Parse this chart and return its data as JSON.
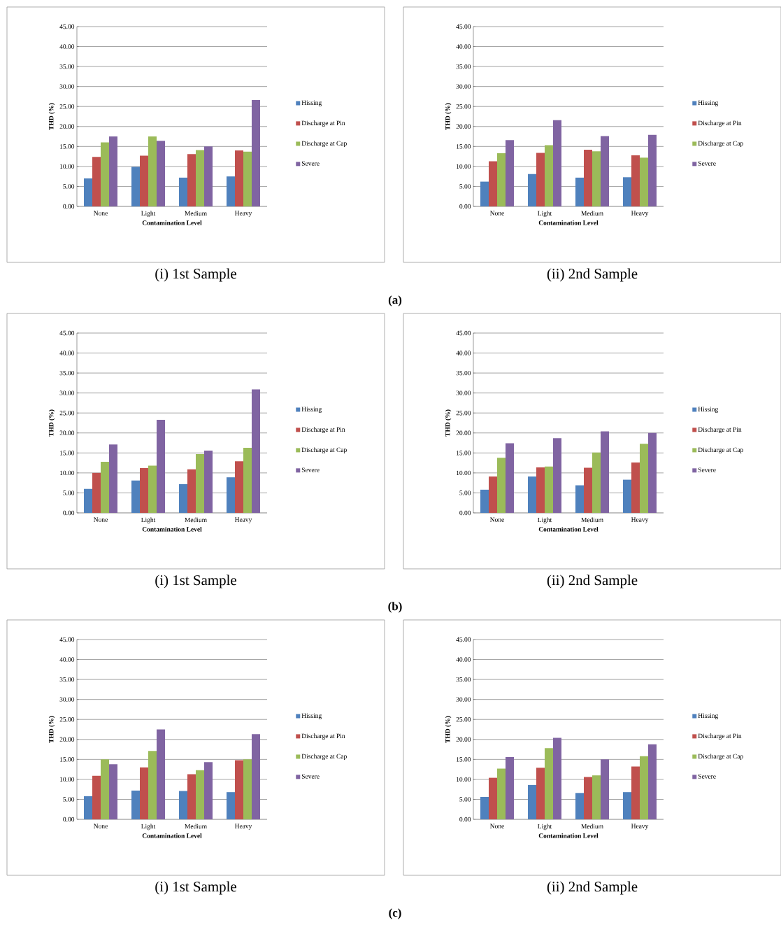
{
  "chart_data": [
    {
      "type": "bar",
      "title": "(i) 1st Sample",
      "xlabel": "Contamination Level",
      "ylabel": "THD (%)",
      "annotations": [
        "(a)"
      ],
      "categories": [
        "None",
        "Light",
        "Medium",
        "Heavy"
      ],
      "series": [
        {
          "name": "Hissing",
          "color": "#4f81bd",
          "values": [
            7.0,
            9.9,
            7.2,
            7.5
          ]
        },
        {
          "name": "Discharge at Pin",
          "color": "#c0504d",
          "values": [
            12.4,
            12.7,
            13.1,
            14.0
          ]
        },
        {
          "name": "Discharge at Cap",
          "color": "#9bbb59",
          "values": [
            16.0,
            17.5,
            14.1,
            13.7
          ]
        },
        {
          "name": "Severe",
          "color": "#8064a2",
          "values": [
            17.5,
            16.4,
            15.0,
            26.6
          ]
        }
      ],
      "ylim": [
        0,
        45
      ],
      "yticks": [
        {
          "value": 0,
          "label": "0.00"
        },
        {
          "value": 5,
          "label": "5.00"
        },
        {
          "value": 10,
          "label": "10.00"
        },
        {
          "value": 15,
          "label": "15.00"
        },
        {
          "value": 20,
          "label": "20.00"
        },
        {
          "value": 25,
          "label": "25.00"
        },
        {
          "value": 30,
          "label": "30.00"
        },
        {
          "value": 35,
          "label": "35.00"
        },
        {
          "value": 40,
          "label": "40.00"
        },
        {
          "value": 45,
          "label": "45.00"
        }
      ],
      "grid": "y",
      "legend": "right"
    },
    {
      "type": "bar",
      "title": "(ii) 2nd Sample",
      "xlabel": "Contamination Level",
      "ylabel": "THD (%)",
      "categories": [
        "None",
        "Light",
        "Medium",
        "Heavy"
      ],
      "series": [
        {
          "name": "Hissing",
          "color": "#4f81bd",
          "values": [
            6.2,
            8.1,
            7.2,
            7.3
          ]
        },
        {
          "name": "Discharge at Pin",
          "color": "#c0504d",
          "values": [
            11.3,
            13.4,
            14.2,
            12.8
          ]
        },
        {
          "name": "Discharge at Cap",
          "color": "#9bbb59",
          "values": [
            13.3,
            15.3,
            13.8,
            12.2
          ]
        },
        {
          "name": "Severe",
          "color": "#8064a2",
          "values": [
            16.6,
            21.6,
            17.6,
            17.9
          ]
        }
      ],
      "ylim": [
        0,
        45
      ],
      "yticks": [
        {
          "value": 0,
          "label": "0.00"
        },
        {
          "value": 5,
          "label": "5.00"
        },
        {
          "value": 10,
          "label": "10.00"
        },
        {
          "value": 15,
          "label": "15.00"
        },
        {
          "value": 20,
          "label": "20.00"
        },
        {
          "value": 25,
          "label": "25.00"
        },
        {
          "value": 30,
          "label": "30.00"
        },
        {
          "value": 35,
          "label": "35.00"
        },
        {
          "value": 40,
          "label": "40.00"
        },
        {
          "value": 45,
          "label": "45.00"
        }
      ],
      "grid": "y",
      "legend": "right"
    },
    {
      "type": "bar",
      "title": "(i) 1st Sample",
      "xlabel": "Contamination Level",
      "ylabel": "THD (%)",
      "annotations": [
        "(b)"
      ],
      "categories": [
        "None",
        "Light",
        "Medium",
        "Heavy"
      ],
      "series": [
        {
          "name": "Hissing",
          "color": "#4f81bd",
          "values": [
            6.0,
            8.1,
            7.2,
            8.9
          ]
        },
        {
          "name": "Discharge at Pin",
          "color": "#c0504d",
          "values": [
            10.0,
            11.2,
            10.9,
            12.9
          ]
        },
        {
          "name": "Discharge at Cap",
          "color": "#9bbb59",
          "values": [
            12.8,
            11.8,
            14.7,
            16.3
          ]
        },
        {
          "name": "Severe",
          "color": "#8064a2",
          "values": [
            17.1,
            23.3,
            15.6,
            30.9
          ]
        }
      ],
      "ylim": [
        0,
        45
      ],
      "yticks": [
        {
          "value": 0,
          "label": "0.00"
        },
        {
          "value": 5,
          "label": "5.00"
        },
        {
          "value": 10,
          "label": "10.00"
        },
        {
          "value": 15,
          "label": "15.00"
        },
        {
          "value": 20,
          "label": "20.00"
        },
        {
          "value": 25,
          "label": "25.00"
        },
        {
          "value": 30,
          "label": "30.00"
        },
        {
          "value": 35,
          "label": "35.00"
        },
        {
          "value": 40,
          "label": "40.00"
        },
        {
          "value": 45,
          "label": "45.00"
        }
      ],
      "grid": "y",
      "legend": "right"
    },
    {
      "type": "bar",
      "title": "(ii) 2nd Sample",
      "xlabel": "Contamination Level",
      "ylabel": "THD (%)",
      "categories": [
        "None",
        "Light",
        "Medium",
        "Heavy"
      ],
      "series": [
        {
          "name": "Hissing",
          "color": "#4f81bd",
          "values": [
            5.8,
            9.1,
            6.9,
            8.3
          ]
        },
        {
          "name": "Discharge at Pin",
          "color": "#c0504d",
          "values": [
            9.1,
            11.4,
            11.3,
            12.6
          ]
        },
        {
          "name": "Discharge at Cap",
          "color": "#9bbb59",
          "values": [
            13.8,
            11.6,
            15.1,
            17.3
          ]
        },
        {
          "name": "Severe",
          "color": "#8064a2",
          "values": [
            17.4,
            18.7,
            20.4,
            20.0
          ]
        }
      ],
      "ylim": [
        0,
        45
      ],
      "yticks": [
        {
          "value": 0,
          "label": "0.00"
        },
        {
          "value": 5,
          "label": "5.00"
        },
        {
          "value": 10,
          "label": "10.00"
        },
        {
          "value": 15,
          "label": "15.00"
        },
        {
          "value": 20,
          "label": "20.00"
        },
        {
          "value": 25,
          "label": "25.00"
        },
        {
          "value": 30,
          "label": "30.00"
        },
        {
          "value": 35,
          "label": "35.00"
        },
        {
          "value": 40,
          "label": "40.00"
        },
        {
          "value": 45,
          "label": "45.00"
        }
      ],
      "grid": "y",
      "legend": "right"
    },
    {
      "type": "bar",
      "title": "(i) 1st Sample",
      "xlabel": "Contamination Level",
      "ylabel": "THD (%)",
      "annotations": [
        "(c)"
      ],
      "categories": [
        "None",
        "Light",
        "Medium",
        "Heavy"
      ],
      "series": [
        {
          "name": "Hissing",
          "color": "#4f81bd",
          "values": [
            5.8,
            7.2,
            7.1,
            6.8
          ]
        },
        {
          "name": "Discharge at Pin",
          "color": "#c0504d",
          "values": [
            10.9,
            13.0,
            11.3,
            14.8
          ]
        },
        {
          "name": "Discharge at Cap",
          "color": "#9bbb59",
          "values": [
            15.0,
            17.1,
            12.3,
            15.0
          ]
        },
        {
          "name": "Severe",
          "color": "#8064a2",
          "values": [
            13.8,
            22.5,
            14.3,
            21.3
          ]
        }
      ],
      "ylim": [
        0,
        45
      ],
      "yticks": [
        {
          "value": 0,
          "label": "0.00"
        },
        {
          "value": 5,
          "label": "5.00"
        },
        {
          "value": 10,
          "label": "10.00"
        },
        {
          "value": 15,
          "label": "15.00"
        },
        {
          "value": 20,
          "label": "20.00"
        },
        {
          "value": 25,
          "label": "25.00"
        },
        {
          "value": 30,
          "label": "30.00"
        },
        {
          "value": 35,
          "label": "35.00"
        },
        {
          "value": 40,
          "label": "40.00"
        },
        {
          "value": 45,
          "label": "45.00"
        }
      ],
      "grid": "y",
      "legend": "right"
    },
    {
      "type": "bar",
      "title": "(ii) 2nd Sample",
      "xlabel": "Contamination Level",
      "ylabel": "THD (%)",
      "categories": [
        "None",
        "Light",
        "Medium",
        "Heavy"
      ],
      "series": [
        {
          "name": "Hissing",
          "color": "#4f81bd",
          "values": [
            5.6,
            8.6,
            6.6,
            6.8
          ]
        },
        {
          "name": "Discharge at Pin",
          "color": "#c0504d",
          "values": [
            10.4,
            12.9,
            10.6,
            13.2
          ]
        },
        {
          "name": "Discharge at Cap",
          "color": "#9bbb59",
          "values": [
            12.7,
            17.8,
            11.0,
            15.8
          ]
        },
        {
          "name": "Severe",
          "color": "#8064a2",
          "values": [
            15.6,
            20.4,
            15.0,
            18.8
          ]
        }
      ],
      "ylim": [
        0,
        45
      ],
      "yticks": [
        {
          "value": 0,
          "label": "0.00"
        },
        {
          "value": 5,
          "label": "5.00"
        },
        {
          "value": 10,
          "label": "10.00"
        },
        {
          "value": 15,
          "label": "15.00"
        },
        {
          "value": 20,
          "label": "20.00"
        },
        {
          "value": 25,
          "label": "25.00"
        },
        {
          "value": 30,
          "label": "30.00"
        },
        {
          "value": 35,
          "label": "35.00"
        },
        {
          "value": 40,
          "label": "40.00"
        },
        {
          "value": 45,
          "label": "45.00"
        }
      ],
      "grid": "y",
      "legend": "right"
    }
  ]
}
